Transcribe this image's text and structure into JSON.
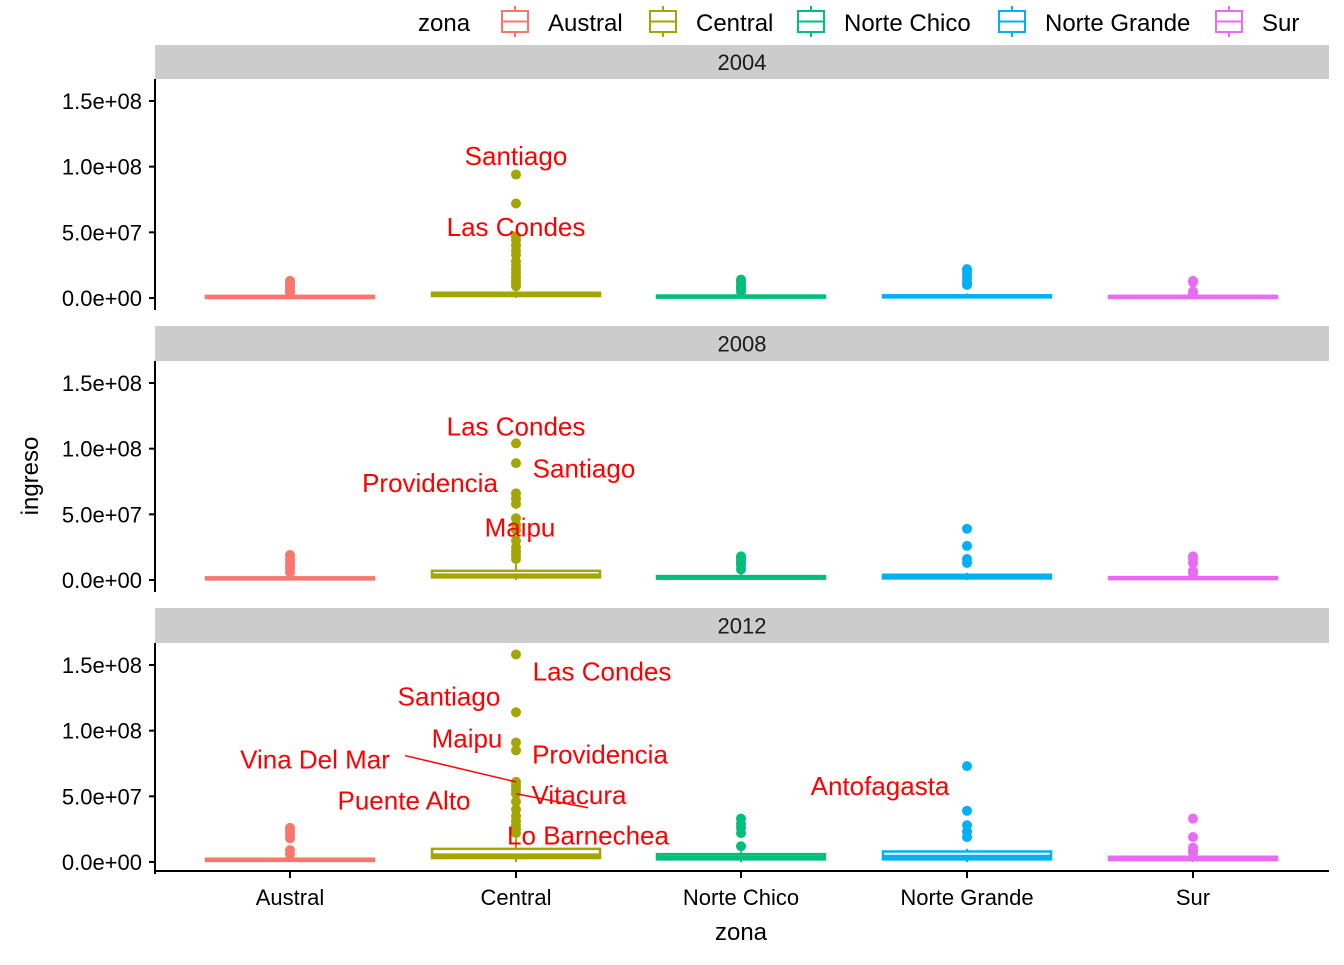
{
  "chart_data": {
    "type": "boxplot",
    "facet_by": "year",
    "xlabel": "zona",
    "ylabel": "ingreso",
    "ylim": [
      0,
      160000000
    ],
    "yticks": [
      {
        "value": 0,
        "label": "0.0e+00"
      },
      {
        "value": 50000000,
        "label": "5.0e+07"
      },
      {
        "value": 100000000,
        "label": "1.0e+08"
      },
      {
        "value": 150000000,
        "label": "1.5e+08"
      }
    ],
    "categories": [
      "Austral",
      "Central",
      "Norte Chico",
      "Norte Grande",
      "Sur"
    ],
    "legend": {
      "title": "zona",
      "position": "top-right",
      "entries": [
        {
          "label": "Austral",
          "color": "#F8766D"
        },
        {
          "label": "Central",
          "color": "#A3A500"
        },
        {
          "label": "Norte Chico",
          "color": "#00BF7D"
        },
        {
          "label": "Norte Grande",
          "color": "#00B0F6"
        },
        {
          "label": "Sur",
          "color": "#E76BF3"
        }
      ]
    },
    "label_color": "#FF0000",
    "panels": [
      {
        "title": "2004",
        "boxes": [
          {
            "zona": "Austral",
            "q1": 500000,
            "median": 1000000,
            "q3": 1500000,
            "whisker_low": 0,
            "whisker_high": 2500000,
            "outliers": [
              4000000,
              6000000,
              8000000,
              10000000,
              12000000,
              13000000
            ]
          },
          {
            "zona": "Central",
            "q1": 1500000,
            "median": 2500000,
            "q3": 4000000,
            "whisker_low": 0,
            "whisker_high": 7000000,
            "outliers": [
              9000000,
              11000000,
              13000000,
              16000000,
              19000000,
              22000000,
              25000000,
              28000000,
              33000000,
              36000000,
              40000000,
              44000000,
              47000000,
              72000000,
              94000000
            ]
          },
          {
            "zona": "Norte Chico",
            "q1": 800000,
            "median": 1200000,
            "q3": 1800000,
            "whisker_low": 0,
            "whisker_high": 3000000,
            "outliers": [
              5000000,
              7000000,
              9000000,
              11000000,
              13000000,
              14000000
            ]
          },
          {
            "zona": "Norte Grande",
            "q1": 800000,
            "median": 1300000,
            "q3": 2000000,
            "whisker_low": 0,
            "whisker_high": 3500000,
            "outliers": [
              10000000,
              12000000,
              15000000,
              18000000,
              21000000,
              22000000
            ]
          },
          {
            "zona": "Sur",
            "q1": 600000,
            "median": 1000000,
            "q3": 1500000,
            "whisker_low": 0,
            "whisker_high": 2500000,
            "outliers": [
              3500000,
              5000000,
              12000000,
              13000000
            ]
          }
        ],
        "labels": [
          {
            "text": "Santiago",
            "zona": "Central",
            "value": 94000000,
            "label_y": 108000000,
            "dx": 0
          },
          {
            "text": "Las Condes",
            "zona": "Central",
            "value": 47000000,
            "label_y": 54000000,
            "dx": 0
          }
        ]
      },
      {
        "title": "2008",
        "boxes": [
          {
            "zona": "Austral",
            "q1": 700000,
            "median": 1200000,
            "q3": 2000000,
            "whisker_low": 0,
            "whisker_high": 3500000,
            "outliers": [
              6000000,
              9000000,
              11000000,
              13000000,
              16000000,
              19000000
            ]
          },
          {
            "zona": "Central",
            "q1": 2000000,
            "median": 3500000,
            "q3": 7000000,
            "whisker_low": 0,
            "whisker_high": 12000000,
            "outliers": [
              16000000,
              19000000,
              22000000,
              25000000,
              30000000,
              38000000,
              42000000,
              47000000,
              58000000,
              62000000,
              66000000,
              89000000,
              104000000
            ]
          },
          {
            "zona": "Norte Chico",
            "q1": 1000000,
            "median": 1800000,
            "q3": 3000000,
            "whisker_low": 0,
            "whisker_high": 4500000,
            "outliers": [
              8000000,
              11000000,
              13000000,
              15000000,
              17000000,
              18000000
            ]
          },
          {
            "zona": "Norte Grande",
            "q1": 1200000,
            "median": 2200000,
            "q3": 4000000,
            "whisker_low": 0,
            "whisker_high": 5500000,
            "outliers": [
              13000000,
              16000000,
              26000000,
              39000000
            ]
          },
          {
            "zona": "Sur",
            "q1": 800000,
            "median": 1300000,
            "q3": 2200000,
            "whisker_low": 0,
            "whisker_high": 3500000,
            "outliers": [
              5000000,
              7000000,
              13000000,
              16000000,
              18000000
            ]
          }
        ],
        "labels": [
          {
            "text": "Las Condes",
            "zona": "Central",
            "value": 104000000,
            "label_y": 117000000,
            "dx": 0
          },
          {
            "text": "Santiago",
            "zona": "Central",
            "value": 89000000,
            "label_y": 85000000,
            "dx": 68
          },
          {
            "text": "Providencia",
            "zona": "Central",
            "value": 62000000,
            "label_y": 74000000,
            "dx": -86
          },
          {
            "text": "Maipu",
            "zona": "Central",
            "value": 42000000,
            "label_y": 40000000,
            "dx": 4
          }
        ]
      },
      {
        "title": "2012",
        "boxes": [
          {
            "zona": "Austral",
            "q1": 800000,
            "median": 1500000,
            "q3": 2500000,
            "whisker_low": 0,
            "whisker_high": 4000000,
            "outliers": [
              6000000,
              9000000,
              18000000,
              21000000,
              24000000,
              26000000
            ]
          },
          {
            "zona": "Central",
            "q1": 3000000,
            "median": 5000000,
            "q3": 10000000,
            "whisker_low": 0,
            "whisker_high": 18000000,
            "outliers": [
              22000000,
              25000000,
              28000000,
              31000000,
              35000000,
              40000000,
              46000000,
              52000000,
              55000000,
              58000000,
              61000000,
              85000000,
              91000000,
              114000000,
              158000000
            ]
          },
          {
            "zona": "Norte Chico",
            "q1": 2000000,
            "median": 3500000,
            "q3": 6000000,
            "whisker_low": 0,
            "whisker_high": 8000000,
            "outliers": [
              12000000,
              22000000,
              26000000,
              29000000,
              33000000
            ]
          },
          {
            "zona": "Norte Grande",
            "q1": 2000000,
            "median": 4000000,
            "q3": 8000000,
            "whisker_low": 0,
            "whisker_high": 10000000,
            "outliers": [
              19000000,
              23000000,
              28000000,
              39000000,
              73000000
            ]
          },
          {
            "zona": "Sur",
            "q1": 1500000,
            "median": 2500000,
            "q3": 4000000,
            "whisker_low": 0,
            "whisker_high": 5500000,
            "outliers": [
              7000000,
              9000000,
              11000000,
              19000000,
              33000000
            ]
          }
        ],
        "labels": [
          {
            "text": "Las Condes",
            "zona": "Central",
            "value": 158000000,
            "label_y": 145000000,
            "dx": 86
          },
          {
            "text": "Santiago",
            "zona": "Central",
            "value": 114000000,
            "label_y": 126000000,
            "dx": -67
          },
          {
            "text": "Maipu",
            "zona": "Central",
            "value": 91000000,
            "label_y": 94000000,
            "dx": -49
          },
          {
            "text": "Providencia",
            "zona": "Central",
            "value": 85000000,
            "label_y": 82000000,
            "dx": 84
          },
          {
            "text": "Vina Del Mar",
            "zona": "Central",
            "value": 61000000,
            "label_y": 78000000,
            "dx": -201,
            "leader": true
          },
          {
            "text": "Vitacura",
            "zona": "Central",
            "value": 52000000,
            "label_y": 51000000,
            "dx": 63
          },
          {
            "text": "Puente Alto",
            "zona": "Central",
            "value": 55000000,
            "label_y": 47000000,
            "dx": -112
          },
          {
            "text": "Lo Barnechea",
            "zona": "Central",
            "value": 52000000,
            "label_y": 20000000,
            "dx": 72,
            "leader": true
          },
          {
            "text": "Antofagasta",
            "zona": "Norte Grande",
            "value": 73000000,
            "label_y": 58000000,
            "dx": -87
          }
        ]
      }
    ]
  }
}
